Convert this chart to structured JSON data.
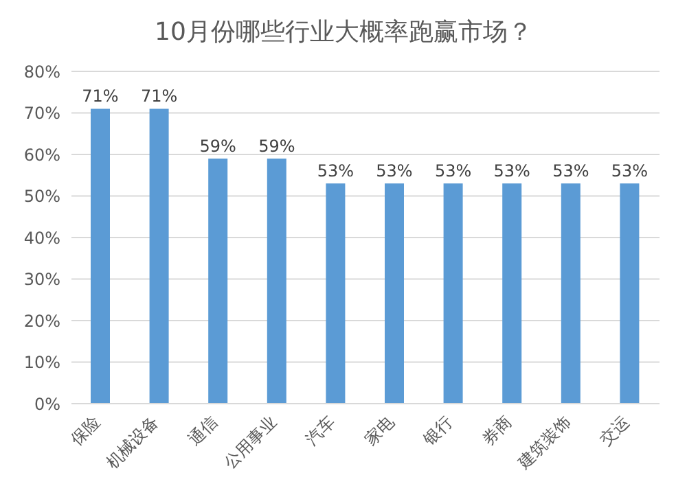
{
  "chart_data": {
    "type": "bar",
    "title": "10月份哪些行业大概率跑赢市场？",
    "categories": [
      "保险",
      "机械设备",
      "通信",
      "公用事业",
      "汽车",
      "家电",
      "银行",
      "券商",
      "建筑装饰",
      "交运"
    ],
    "values": [
      71,
      71,
      59,
      59,
      53,
      53,
      53,
      53,
      53,
      53
    ],
    "value_labels": [
      "71%",
      "71%",
      "59%",
      "59%",
      "53%",
      "53%",
      "53%",
      "53%",
      "53%",
      "53%"
    ],
    "color": "#5b9bd5",
    "ylim": [
      0,
      80
    ],
    "yticks": [
      {
        "value": 0,
        "label": "0%"
      },
      {
        "value": 10,
        "label": "10%"
      },
      {
        "value": 20,
        "label": "20%"
      },
      {
        "value": 30,
        "label": "30%"
      },
      {
        "value": 40,
        "label": "40%"
      },
      {
        "value": 50,
        "label": "50%"
      },
      {
        "value": 60,
        "label": "60%"
      },
      {
        "value": 70,
        "label": "70%"
      },
      {
        "value": 80,
        "label": "80%"
      }
    ],
    "grid": "y"
  }
}
